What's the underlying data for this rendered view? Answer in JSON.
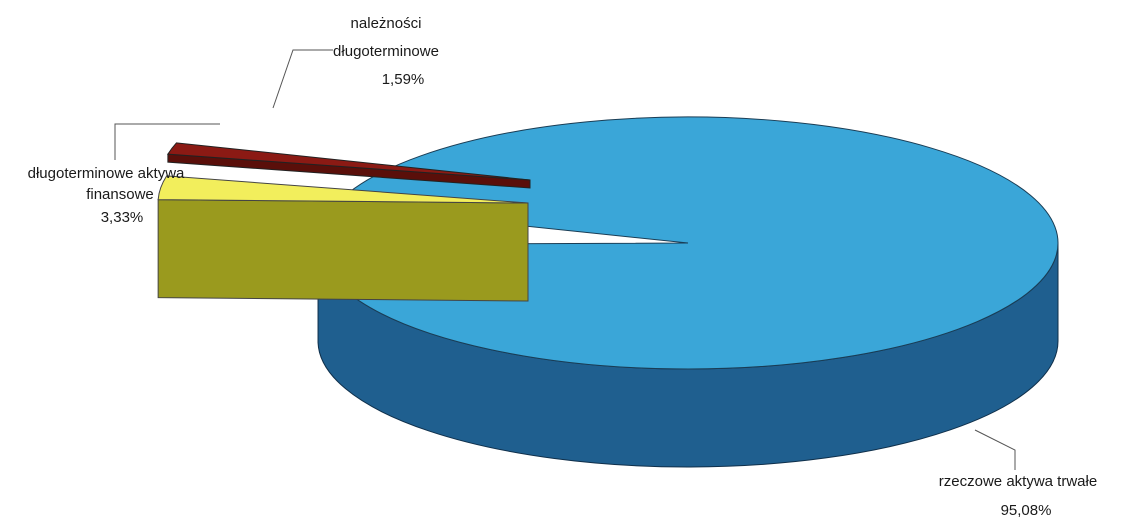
{
  "chart_data": {
    "type": "pie",
    "title": "",
    "slices": [
      {
        "label_lines": [
          "rzeczowe aktywa trwałe"
        ],
        "value_text": "95,08%",
        "value": 95.08,
        "top_color": "#3aa6d8",
        "side_color": "#1f5f8f"
      },
      {
        "label_lines": [
          "należności",
          "długoterminowe"
        ],
        "value_text": "1,59%",
        "value": 1.59,
        "top_color": "#8b1a14",
        "side_color": "#5a0f0a"
      },
      {
        "label_lines": [
          "długoterminowe aktywa",
          "finansowe"
        ],
        "value_text": "3,33%",
        "value": 3.33,
        "top_color": "#f2ee5c",
        "side_color": "#9a9a1e"
      }
    ],
    "legend": "none",
    "grid": false
  }
}
